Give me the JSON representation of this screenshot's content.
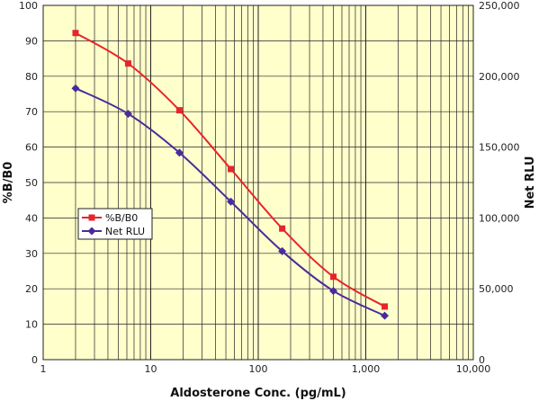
{
  "chart_data": {
    "type": "line",
    "title": "",
    "xlabel": "Aldosterone Conc. (pg/mL)",
    "ylabel": "%B/B0",
    "y2label": "Net RLU",
    "xscale": "log",
    "xlim": [
      1,
      10000
    ],
    "ylim": [
      0,
      100
    ],
    "y2lim": [
      0,
      250000
    ],
    "x_ticks": [
      "1",
      "10",
      "100",
      "1,000",
      "10,000"
    ],
    "y_ticks": [
      "0",
      "10",
      "20",
      "30",
      "40",
      "50",
      "60",
      "70",
      "80",
      "90",
      "100"
    ],
    "y2_ticks": [
      "0",
      "50,000",
      "100,000",
      "150,000",
      "200,000",
      "250,000"
    ],
    "grid": true,
    "legend_position": "left-middle",
    "plot_background": "#FFFFCC",
    "series": [
      {
        "name": "%B/B0",
        "axis": "left",
        "color": "#E8242B",
        "marker": "square",
        "x": [
          2,
          6.17,
          18.5,
          55.6,
          167,
          500,
          1500
        ],
        "y": [
          92.2,
          83.6,
          70.4,
          53.8,
          37.0,
          23.4,
          15.0
        ]
      },
      {
        "name": "Net RLU",
        "axis": "right",
        "color": "#4B2A9C",
        "marker": "diamond",
        "x": [
          2,
          6.17,
          18.5,
          55.6,
          167,
          500,
          1500
        ],
        "y": [
          191500,
          173500,
          146000,
          111500,
          76500,
          48500,
          31000
        ]
      }
    ]
  }
}
